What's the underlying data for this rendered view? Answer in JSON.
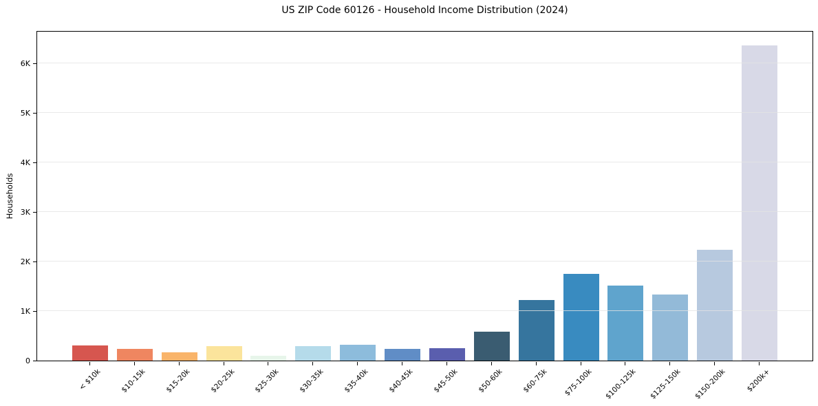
{
  "chart_data": {
    "type": "bar",
    "title": "US ZIP Code 60126 - Household Income Distribution (2024)",
    "xlabel": "",
    "ylabel": "Households",
    "categories": [
      "< $10k",
      "$10-15k",
      "$15-20k",
      "$20-25k",
      "$25-30k",
      "$30-35k",
      "$35-40k",
      "$40-45k",
      "$45-50k",
      "$50-60k",
      "$60-75k",
      "$75-100k",
      "$100-125k",
      "$125-150k",
      "$150-200k",
      "$200k+"
    ],
    "values": [
      300,
      230,
      165,
      290,
      95,
      295,
      320,
      235,
      250,
      585,
      1220,
      1755,
      1510,
      1330,
      2240,
      6360
    ],
    "bar_colors": [
      "#d6564f",
      "#ef8660",
      "#f9b46a",
      "#fbe49c",
      "#e7f5ea",
      "#b5dbea",
      "#8dbcdc",
      "#608dc6",
      "#5a5eae",
      "#3a5c71",
      "#36759e",
      "#398bc0",
      "#5fa4cd",
      "#93bad8",
      "#b7c9df",
      "#d8d9e7"
    ],
    "ylim": [
      0,
      6667
    ],
    "yticks": {
      "values": [
        0,
        1000,
        2000,
        3000,
        4000,
        5000,
        6000
      ],
      "labels": [
        "0",
        "1K",
        "2K",
        "3K",
        "4K",
        "5K",
        "6K"
      ]
    },
    "grid": "horizontal-light",
    "legend": "none",
    "background": "#ffffff",
    "axis_color": "#000000",
    "grid_color": "#e3e3e3"
  }
}
